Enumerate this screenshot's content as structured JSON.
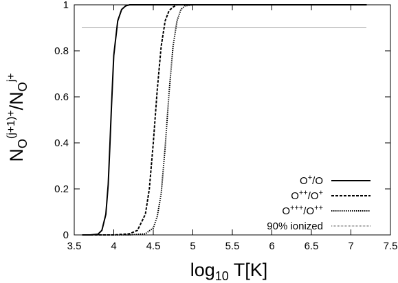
{
  "chart_data": {
    "type": "line",
    "xlabel": {
      "base": "log",
      "sub": "10",
      "rest": " T[K]"
    },
    "ylabel": {
      "N1": "N",
      "sub1": "O",
      "sup1": "(j+1)+",
      "slash": "/N",
      "sub2": "O",
      "sup2": "j+"
    },
    "xlim": [
      3.5,
      7.5
    ],
    "ylim": [
      0,
      1
    ],
    "x_ticks": [
      "3.5",
      "4",
      "4.5",
      "5",
      "5.5",
      "6",
      "6.5",
      "7",
      "7.5"
    ],
    "y_ticks": [
      "0",
      "0.2",
      "0.4",
      "0.6",
      "0.8",
      "1"
    ],
    "grid": false,
    "legend_position": "bottom-right",
    "series": [
      {
        "name": "O+/O",
        "legend": {
          "base": "O",
          "sup": "+",
          "tail": "/O"
        },
        "style": "solid",
        "x": [
          3.6,
          3.7,
          3.8,
          3.85,
          3.9,
          3.93,
          3.95,
          3.97,
          4.0,
          4.05,
          4.1,
          4.15,
          4.2,
          4.3,
          4.5,
          5.0,
          6.0,
          7.0,
          7.2
        ],
        "y": [
          0,
          0,
          0.003,
          0.02,
          0.09,
          0.22,
          0.38,
          0.55,
          0.78,
          0.93,
          0.98,
          0.995,
          1,
          1,
          1,
          1,
          1,
          1,
          1
        ]
      },
      {
        "name": "O++/O+",
        "legend": {
          "base": "O",
          "sup": "++",
          "tail": "/O",
          "tail_sup": "+"
        },
        "style": "dashed",
        "x": [
          3.6,
          4.0,
          4.2,
          4.3,
          4.4,
          4.45,
          4.5,
          4.55,
          4.6,
          4.65,
          4.7,
          4.75,
          4.8,
          5.0,
          6.0,
          7.0,
          7.2
        ],
        "y": [
          0,
          0,
          0.005,
          0.02,
          0.09,
          0.2,
          0.4,
          0.63,
          0.82,
          0.93,
          0.975,
          0.99,
          1,
          1,
          1,
          1,
          1
        ]
      },
      {
        "name": "O+++/O++",
        "legend": {
          "base": "O",
          "sup": "+++",
          "tail": "/O",
          "tail_sup": "++"
        },
        "style": "dotted",
        "x": [
          3.6,
          4.2,
          4.4,
          4.5,
          4.55,
          4.6,
          4.65,
          4.7,
          4.75,
          4.8,
          4.85,
          4.9,
          5.0,
          6.0,
          7.0,
          7.2
        ],
        "y": [
          0,
          0,
          0.005,
          0.03,
          0.08,
          0.18,
          0.38,
          0.62,
          0.82,
          0.93,
          0.98,
          0.995,
          1,
          1,
          1,
          1
        ]
      },
      {
        "name": "90% ionized",
        "legend": {
          "base": "90% ionized"
        },
        "style": "thin",
        "x": [
          3.6,
          7.2
        ],
        "y": [
          0.9,
          0.9
        ]
      }
    ]
  }
}
